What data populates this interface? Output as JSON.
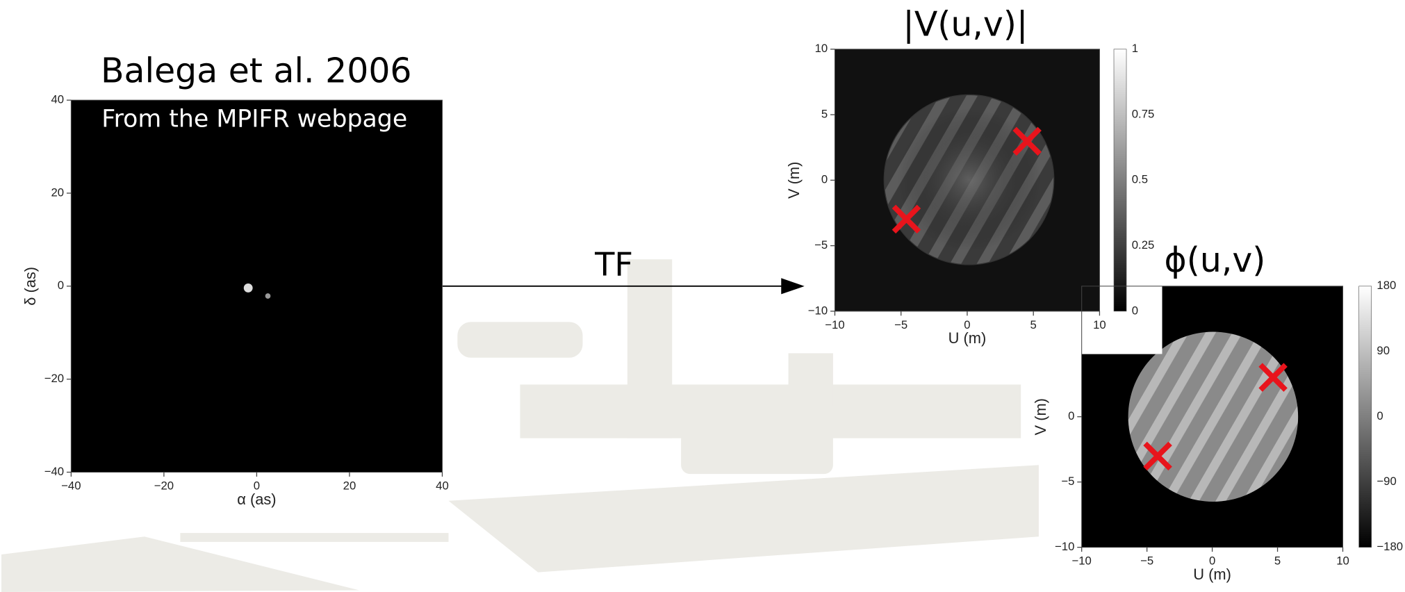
{
  "left_panel": {
    "title": "Balega et al. 2006",
    "caption": "From the MPIFR webpage",
    "x_label": "α (as)",
    "y_label": "δ (as)",
    "x_ticks": [
      "−40",
      "−20",
      "0",
      "20",
      "40"
    ],
    "y_ticks": [
      "40",
      "20",
      "0",
      "−20",
      "−40"
    ]
  },
  "arrow_label": "TF",
  "amplitude_panel": {
    "title": "|V(u,v)|",
    "x_label": "U (m)",
    "y_label": "V (m)",
    "x_ticks": [
      "−10",
      "−5",
      "0",
      "5",
      "10"
    ],
    "y_ticks": [
      "10",
      "5",
      "0",
      "−5",
      "−10"
    ],
    "colorbar_ticks": [
      "1",
      "0.75",
      "0.5",
      "0.25",
      "0"
    ]
  },
  "phase_panel": {
    "title": "ϕ(u,v)",
    "x_label": "U (m)",
    "y_label": "V (m)",
    "x_ticks": [
      "−10",
      "−5",
      "0",
      "5",
      "10"
    ],
    "y_ticks": [
      "0",
      "−5",
      "−10"
    ],
    "colorbar_ticks": [
      "180",
      "90",
      "0",
      "−90",
      "−180"
    ]
  }
}
